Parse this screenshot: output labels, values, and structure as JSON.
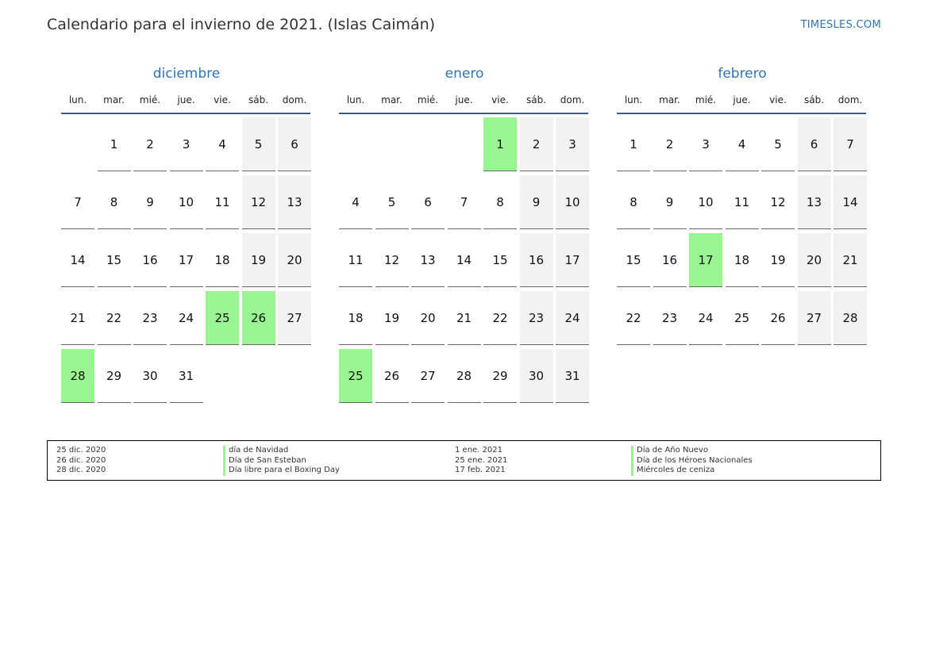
{
  "header": {
    "title": "Calendario para el invierno de 2021. (Islas Caimán)",
    "brand": "TIMESLES.COM"
  },
  "colors": {
    "accent": "#2e74b5",
    "holiday": "#99f591",
    "weekend": "#f2f2f2"
  },
  "weekdays": [
    "lun.",
    "mar.",
    "mié.",
    "jue.",
    "vie.",
    "sáb.",
    "dom."
  ],
  "months": [
    {
      "name": "diciembre",
      "offset": 1,
      "days": 31,
      "holidays": [
        25,
        26,
        28
      ]
    },
    {
      "name": "enero",
      "offset": 4,
      "days": 31,
      "holidays": [
        1,
        25
      ]
    },
    {
      "name": "febrero",
      "offset": 0,
      "days": 28,
      "holidays": [
        17
      ]
    }
  ],
  "legend": [
    {
      "date": "25 dic. 2020",
      "name": "día de Navidad"
    },
    {
      "date": "26 dic. 2020",
      "name": "Día de San Esteban"
    },
    {
      "date": "28 dic. 2020",
      "name": "Día libre para el Boxing Day"
    },
    {
      "date": "1 ene. 2021",
      "name": "Día de Año Nuevo"
    },
    {
      "date": "25 ene. 2021",
      "name": "Día de los Héroes Nacionales"
    },
    {
      "date": "17 feb. 2021",
      "name": "Miércoles de ceniza"
    }
  ]
}
